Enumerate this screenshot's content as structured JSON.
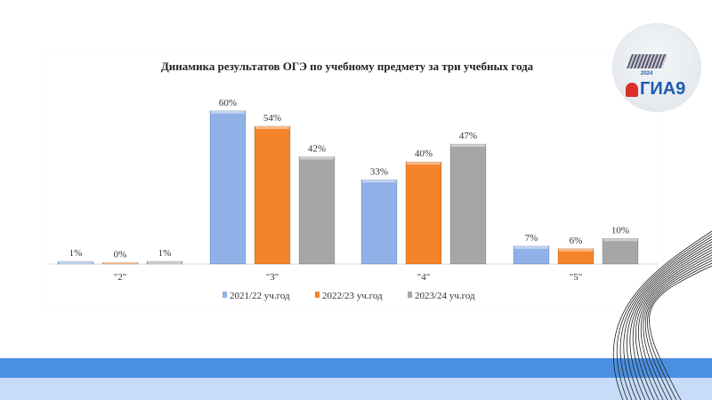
{
  "chart_data": {
    "type": "bar",
    "title": "Динамика результатов ОГЭ по учебному предмету за три учебных года",
    "categories": [
      "\"2\"",
      "\"3\"",
      "\"4\"",
      "\"5\""
    ],
    "series": [
      {
        "name": "2021/22 уч.год",
        "values": [
          1,
          60,
          33,
          7
        ],
        "color": "#8fb1e8"
      },
      {
        "name": "2022/23 уч.год",
        "values": [
          0,
          54,
          40,
          6
        ],
        "color": "#f5832a"
      },
      {
        "name": "2023/24 уч.год",
        "values": [
          1,
          42,
          47,
          10
        ],
        "color": "#a6a6a6"
      }
    ],
    "value_format": "percent",
    "legend": "bottom",
    "grid": false
  },
  "logo": {
    "text": "ГИА9",
    "year": "2024"
  }
}
